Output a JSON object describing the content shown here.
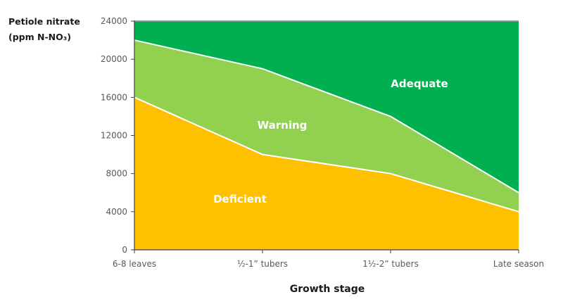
{
  "chart_data": {
    "type": "area",
    "title": "",
    "ylabel_line1": "Petiole nitrate",
    "ylabel_line2": "(ppm N-NO₃)",
    "xlabel": "Growth stage",
    "categories": [
      "6-8 leaves",
      "½-1” tubers",
      "1½-2” tubers",
      "Late season"
    ],
    "ylim": [
      0,
      24000
    ],
    "yticks": [
      0,
      4000,
      8000,
      12000,
      16000,
      20000,
      24000
    ],
    "grid": false,
    "legend": "none",
    "boundaries": {
      "deficient_upper": [
        16000,
        10000,
        8000,
        4000
      ],
      "warning_upper": [
        22000,
        19000,
        14000,
        6000
      ],
      "adequate_upper": [
        24000,
        24000,
        24000,
        24000
      ]
    },
    "regions": [
      {
        "name": "Deficient",
        "color": "#FFC000"
      },
      {
        "name": "Warning",
        "color": "#92D050"
      },
      {
        "name": "Adequate",
        "color": "#00B050"
      }
    ]
  }
}
